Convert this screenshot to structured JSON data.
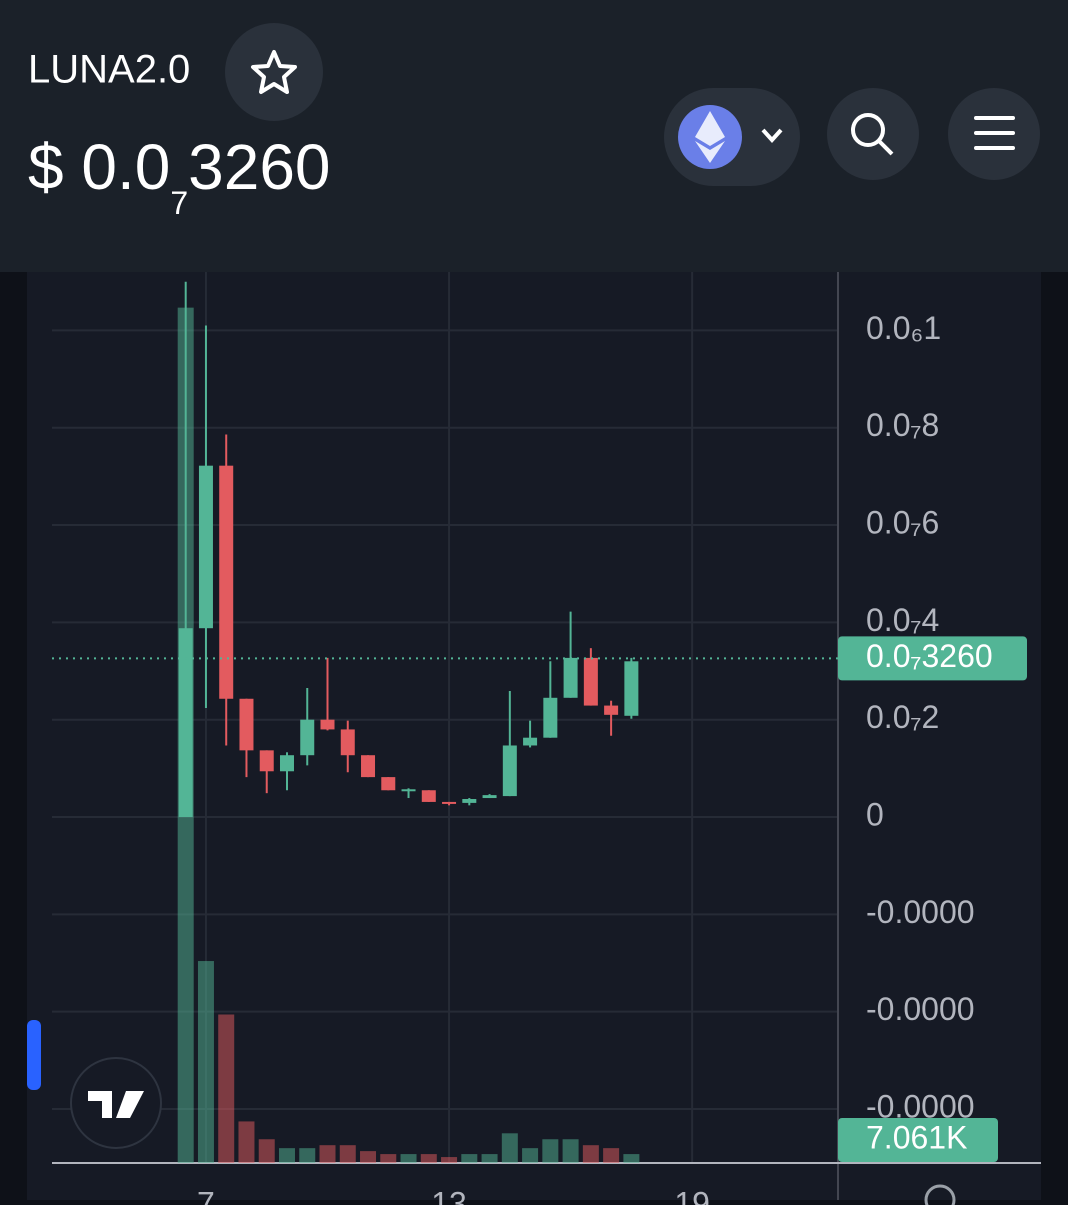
{
  "header": {
    "symbol": "LUNA2.0",
    "price": {
      "prefix": "$ 0.0",
      "zeros": "7",
      "digits": "3260"
    }
  },
  "chart_data": {
    "type": "candlestick",
    "x": [
      6.5,
      7,
      7.5,
      8,
      8.5,
      9,
      9.5,
      10,
      10.5,
      11,
      11.5,
      12,
      12.5,
      13,
      13.5,
      14,
      14.5,
      15,
      15.5,
      16,
      16.5,
      17,
      17.5
    ],
    "open": [
      0,
      3.88e-08,
      7.22e-08,
      2.43e-08,
      1.37e-08,
      9.4e-09,
      1.27e-08,
      2e-08,
      1.8e-08,
      1.27e-08,
      8.2e-09,
      5.3e-09,
      5.5e-09,
      3.1e-09,
      2.9e-09,
      3.9e-09,
      4.3e-09,
      1.47e-08,
      1.63e-08,
      2.45e-08,
      3.27e-08,
      2.29e-08,
      2.08e-08
    ],
    "high": [
      1.1e-07,
      1.01e-07,
      7.86e-08,
      2.43e-08,
      1.37e-08,
      1.33e-08,
      2.65e-08,
      3.27e-08,
      1.98e-08,
      1.27e-08,
      8.2e-09,
      5.9e-09,
      5.5e-09,
      3.1e-09,
      3.9e-09,
      4.7e-09,
      2.59e-08,
      1.98e-08,
      3.2e-08,
      4.22e-08,
      3.47e-08,
      2.39e-08,
      3.27e-08
    ],
    "low": [
      0,
      2.24e-08,
      1.47e-08,
      8.2e-09,
      4.9e-09,
      5.5e-09,
      1.06e-08,
      1.78e-08,
      9.2e-09,
      8.2e-09,
      5.5e-09,
      3.9e-09,
      3.1e-09,
      2.4e-09,
      2.4e-09,
      3.9e-09,
      4.3e-09,
      1.43e-08,
      1.63e-08,
      2.45e-08,
      2.29e-08,
      1.67e-08,
      2.02e-08
    ],
    "close": [
      3.88e-08,
      7.22e-08,
      2.43e-08,
      1.37e-08,
      9.4e-09,
      1.27e-08,
      2e-08,
      1.8e-08,
      1.27e-08,
      8.2e-09,
      5.5e-09,
      5.7e-09,
      3.1e-09,
      2.7e-09,
      3.7e-09,
      4.5e-09,
      1.47e-08,
      1.63e-08,
      2.45e-08,
      3.27e-08,
      2.29e-08,
      2.1e-08,
      3.2e-08
    ],
    "volumes": [
      288,
      68,
      50,
      14,
      8,
      5,
      5,
      6,
      6,
      4,
      3,
      3,
      3,
      2,
      3,
      3,
      10,
      5,
      8,
      8,
      6,
      5,
      3
    ],
    "volume_lim": [
      0,
      300
    ],
    "up_color": "#53b596",
    "down_color": "#e35b5f",
    "xlim": [
      3.2,
      22.6
    ],
    "xticks": [
      7,
      13,
      19
    ],
    "ylim": [
      -7.11e-08,
      1.12e-07
    ],
    "yticks": [
      {
        "value": 1e-07,
        "label": "0.0₆1"
      },
      {
        "value": 8e-08,
        "label": "0.0₇8"
      },
      {
        "value": 6e-08,
        "label": "0.0₇6"
      },
      {
        "value": 4e-08,
        "label": "0.0₇4"
      },
      {
        "value": 2e-08,
        "label": "0.0₇2"
      },
      0,
      {
        "value": -2e-08,
        "label": "-0.0000"
      },
      {
        "value": -4e-08,
        "label": "-0.0000"
      },
      {
        "value": -6e-08,
        "label": "-0.0000"
      }
    ],
    "last_price": {
      "value": 3.26e-08,
      "label": "0.0₇3260"
    },
    "volume_label": "7.061K",
    "grid": true
  }
}
